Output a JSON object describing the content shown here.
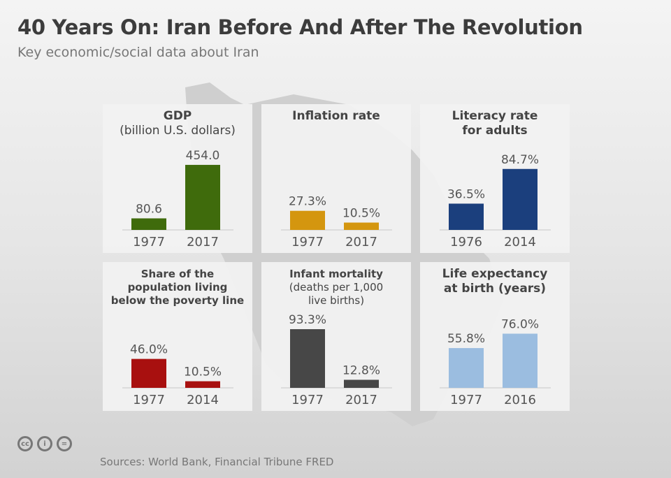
{
  "header": {
    "title": "40 Years On: Iran Before And After The Revolution",
    "subtitle": "Key economic/social data about Iran"
  },
  "footer": {
    "source": "Sources: World Bank, Financial Tribune FRED",
    "license_icons": [
      "cc-icon",
      "attribution-icon",
      "no-derivatives-icon"
    ]
  },
  "chart_data": [
    {
      "type": "bar",
      "title": "GDP",
      "subtitle": "(billion U.S. dollars)",
      "categories": [
        "1977",
        "2017"
      ],
      "values": [
        80.6,
        454.0
      ],
      "labels": [
        "80.6",
        "454.0"
      ],
      "color": "#3f6b0c"
    },
    {
      "type": "bar",
      "title": "Inflation rate",
      "subtitle": "",
      "categories": [
        "1977",
        "2017"
      ],
      "values": [
        27.3,
        10.5
      ],
      "labels": [
        "27.3%",
        "10.5%"
      ],
      "color": "#d4960f"
    },
    {
      "type": "bar",
      "title": "Literacy rate",
      "subtitle": "for adults",
      "categories": [
        "1976",
        "2014"
      ],
      "values": [
        36.5,
        84.7
      ],
      "labels": [
        "36.5%",
        "84.7%"
      ],
      "color": "#1b3f7d"
    },
    {
      "type": "bar",
      "title": "Share of the",
      "subtitle": "population living",
      "subtitle2": "below the poverty line",
      "categories": [
        "1977",
        "2014"
      ],
      "values": [
        46.0,
        10.5
      ],
      "labels": [
        "46.0%",
        "10.5%"
      ],
      "color": "#a8100f"
    },
    {
      "type": "bar",
      "title": "Infant mortality",
      "subtitle": "(deaths per 1,000",
      "subtitle2": "live births)",
      "categories": [
        "1977",
        "2017"
      ],
      "values": [
        93.3,
        12.8
      ],
      "labels": [
        "93.3%",
        "12.8%"
      ],
      "color": "#474747"
    },
    {
      "type": "bar",
      "title": "Life expectancy",
      "subtitle": "at birth (years)",
      "categories": [
        "1977",
        "2016"
      ],
      "values": [
        55.8,
        76.0
      ],
      "labels": [
        "55.8%",
        "76.0%"
      ],
      "color": "#9bbde0"
    }
  ]
}
